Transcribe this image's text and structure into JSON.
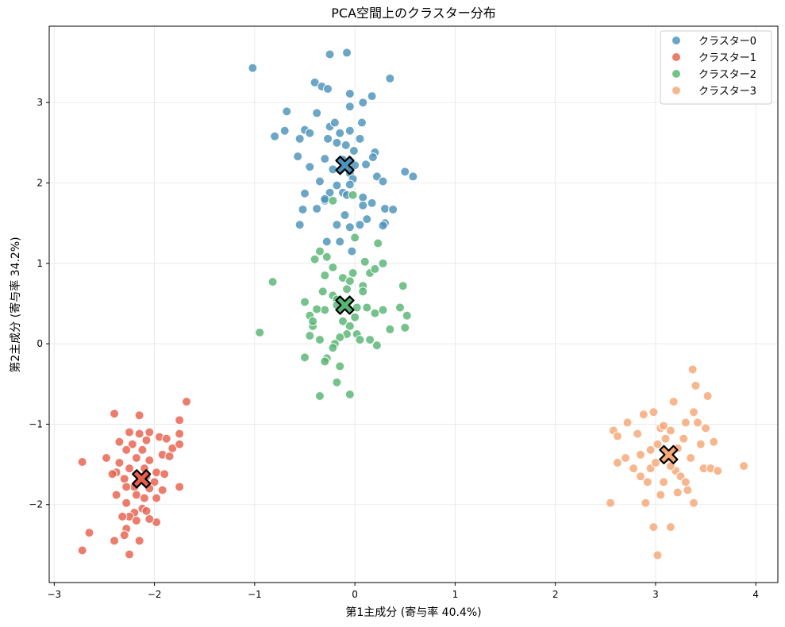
{
  "chart_data": {
    "type": "scatter",
    "title": "PCA空間上のクラスター分布",
    "xlabel": "第1主成分 (寄与率 40.4%)",
    "ylabel": "第2主成分 (寄与率 34.2%)",
    "xlim": [
      -3.05,
      4.22
    ],
    "ylim": [
      -2.97,
      3.95
    ],
    "xticks": [
      -3,
      -2,
      -1,
      0,
      1,
      2,
      3,
      4
    ],
    "xtick_labels": [
      "−3",
      "−2",
      "−1",
      "0",
      "1",
      "2",
      "3",
      "4"
    ],
    "yticks": [
      -2,
      -1,
      0,
      1,
      2,
      3
    ],
    "ytick_labels": [
      "−2",
      "−1",
      "0",
      "1",
      "2",
      "3"
    ],
    "grid": true,
    "legend_position": "top-right",
    "series": [
      {
        "name": "クラスター0",
        "color": "#4c92b9",
        "centroid": [
          -0.1,
          2.22
        ],
        "points": [
          [
            -1.02,
            3.43
          ],
          [
            -0.25,
            3.6
          ],
          [
            -0.08,
            3.62
          ],
          [
            0.35,
            3.3
          ],
          [
            -0.4,
            3.25
          ],
          [
            -0.33,
            3.2
          ],
          [
            -0.27,
            3.17
          ],
          [
            -0.05,
            3.11
          ],
          [
            0.17,
            3.08
          ],
          [
            0.08,
            3.0
          ],
          [
            -0.05,
            2.95
          ],
          [
            -0.68,
            2.89
          ],
          [
            -0.38,
            2.87
          ],
          [
            -0.5,
            2.66
          ],
          [
            -0.7,
            2.65
          ],
          [
            -0.25,
            2.7
          ],
          [
            -0.2,
            2.75
          ],
          [
            -0.15,
            2.62
          ],
          [
            0.07,
            2.75
          ],
          [
            0.05,
            2.55
          ],
          [
            -0.05,
            2.65
          ],
          [
            -0.27,
            2.55
          ],
          [
            -0.8,
            2.58
          ],
          [
            -0.55,
            2.55
          ],
          [
            -0.45,
            2.62
          ],
          [
            -0.18,
            2.5
          ],
          [
            -0.09,
            2.47
          ],
          [
            -0.01,
            2.4
          ],
          [
            0.2,
            2.38
          ],
          [
            0.18,
            2.32
          ],
          [
            -0.57,
            2.33
          ],
          [
            -0.45,
            2.2
          ],
          [
            -0.3,
            2.3
          ],
          [
            -0.12,
            2.29
          ],
          [
            0.0,
            2.22
          ],
          [
            -0.22,
            2.17
          ],
          [
            0.11,
            2.23
          ],
          [
            0.5,
            2.14
          ],
          [
            0.58,
            2.08
          ],
          [
            -0.05,
            2.12
          ],
          [
            -0.02,
            2.05
          ],
          [
            0.22,
            2.08
          ],
          [
            0.28,
            2.02
          ],
          [
            -0.35,
            2.02
          ],
          [
            -0.18,
            1.97
          ],
          [
            -0.05,
            1.98
          ],
          [
            -0.12,
            1.88
          ],
          [
            -0.25,
            1.88
          ],
          [
            -0.5,
            1.87
          ],
          [
            -0.08,
            1.85
          ],
          [
            0.08,
            1.82
          ],
          [
            0.17,
            1.75
          ],
          [
            -0.3,
            1.78
          ],
          [
            0.3,
            1.68
          ],
          [
            0.38,
            1.67
          ],
          [
            -0.38,
            1.68
          ],
          [
            -0.52,
            1.67
          ],
          [
            -0.1,
            1.6
          ],
          [
            0.12,
            1.55
          ],
          [
            0.3,
            1.5
          ],
          [
            0.28,
            1.47
          ],
          [
            -0.55,
            1.48
          ],
          [
            -0.18,
            1.48
          ],
          [
            0.05,
            1.48
          ],
          [
            -0.05,
            1.45
          ],
          [
            -0.28,
            1.27
          ],
          [
            -0.15,
            1.27
          ],
          [
            -0.03,
            1.15
          ],
          [
            -0.3,
            1.8
          ],
          [
            0.08,
            1.72
          ]
        ]
      },
      {
        "name": "クラスター1",
        "color": "#e8604c",
        "centroid": [
          -2.13,
          -1.68
        ],
        "points": [
          [
            -2.72,
            -1.47
          ],
          [
            -2.48,
            -1.42
          ],
          [
            -2.4,
            -0.87
          ],
          [
            -2.15,
            -0.89
          ],
          [
            -1.68,
            -0.72
          ],
          [
            -1.75,
            -0.95
          ],
          [
            -2.05,
            -1.1
          ],
          [
            -2.25,
            -1.1
          ],
          [
            -2.15,
            -1.12
          ],
          [
            -1.95,
            -1.16
          ],
          [
            -1.88,
            -1.18
          ],
          [
            -1.75,
            -1.12
          ],
          [
            -2.35,
            -1.22
          ],
          [
            -2.22,
            -1.25
          ],
          [
            -2.08,
            -1.2
          ],
          [
            -1.82,
            -1.3
          ],
          [
            -1.75,
            -1.25
          ],
          [
            -2.28,
            -1.32
          ],
          [
            -2.12,
            -1.32
          ],
          [
            -1.92,
            -1.38
          ],
          [
            -1.85,
            -1.4
          ],
          [
            -2.35,
            -1.48
          ],
          [
            -2.18,
            -1.42
          ],
          [
            -2.05,
            -1.45
          ],
          [
            -2.25,
            -1.55
          ],
          [
            -2.1,
            -1.55
          ],
          [
            -1.98,
            -1.6
          ],
          [
            -2.38,
            -1.6
          ],
          [
            -2.3,
            -1.68
          ],
          [
            -2.0,
            -1.72
          ],
          [
            -2.2,
            -1.78
          ],
          [
            -2.28,
            -1.78
          ],
          [
            -2.05,
            -1.8
          ],
          [
            -1.75,
            -1.78
          ],
          [
            -1.92,
            -1.82
          ],
          [
            -2.38,
            -1.88
          ],
          [
            -2.18,
            -1.88
          ],
          [
            -2.1,
            -1.92
          ],
          [
            -1.98,
            -1.92
          ],
          [
            -2.28,
            -1.98
          ],
          [
            -2.12,
            -2.05
          ],
          [
            -2.2,
            -2.1
          ],
          [
            -2.25,
            -2.15
          ],
          [
            -2.32,
            -2.15
          ],
          [
            -2.08,
            -2.08
          ],
          [
            -1.98,
            -2.22
          ],
          [
            -2.05,
            -2.18
          ],
          [
            -2.18,
            -2.2
          ],
          [
            -2.28,
            -2.3
          ],
          [
            -2.65,
            -2.35
          ],
          [
            -2.3,
            -2.38
          ],
          [
            -2.4,
            -2.45
          ],
          [
            -2.15,
            -2.45
          ],
          [
            -2.72,
            -2.57
          ],
          [
            -2.25,
            -2.62
          ],
          [
            -2.08,
            -1.65
          ],
          [
            -1.9,
            -1.62
          ],
          [
            -2.42,
            -1.62
          ]
        ]
      },
      {
        "name": "クラスター2",
        "color": "#58b574",
        "centroid": [
          -0.1,
          0.48
        ],
        "points": [
          [
            -0.82,
            0.77
          ],
          [
            -0.95,
            0.14
          ],
          [
            -0.5,
            0.52
          ],
          [
            -0.5,
            -0.17
          ],
          [
            -0.35,
            -0.65
          ],
          [
            -0.05,
            -0.63
          ],
          [
            -0.18,
            -0.48
          ],
          [
            -0.15,
            -0.28
          ],
          [
            -0.28,
            -0.18
          ],
          [
            -0.3,
            -0.22
          ],
          [
            -0.45,
            0.1
          ],
          [
            -0.35,
            0.05
          ],
          [
            -0.42,
            0.22
          ],
          [
            -0.45,
            0.35
          ],
          [
            -0.42,
            0.28
          ],
          [
            -0.3,
            0.42
          ],
          [
            -0.38,
            0.43
          ],
          [
            -0.32,
            0.65
          ],
          [
            -0.3,
            0.85
          ],
          [
            -0.28,
            1.08
          ],
          [
            -0.35,
            1.15
          ],
          [
            -0.4,
            1.05
          ],
          [
            -0.22,
            0.95
          ],
          [
            -0.12,
            0.82
          ],
          [
            -0.05,
            0.78
          ],
          [
            -0.02,
            0.88
          ],
          [
            0.08,
            0.72
          ],
          [
            0.15,
            0.88
          ],
          [
            0.2,
            0.93
          ],
          [
            0.28,
            1.0
          ],
          [
            0.23,
            1.25
          ],
          [
            0.1,
            1.02
          ],
          [
            0.0,
            1.32
          ],
          [
            -0.02,
            1.85
          ],
          [
            -0.22,
            1.78
          ],
          [
            -0.22,
            0.6
          ],
          [
            -0.18,
            0.55
          ],
          [
            -0.12,
            0.28
          ],
          [
            -0.05,
            0.22
          ],
          [
            0.0,
            0.33
          ],
          [
            0.02,
            0.12
          ],
          [
            0.05,
            0.05
          ],
          [
            -0.08,
            0.12
          ],
          [
            -0.15,
            0.08
          ],
          [
            -0.2,
            0.0
          ],
          [
            -0.22,
            -0.05
          ],
          [
            0.12,
            0.45
          ],
          [
            0.2,
            0.38
          ],
          [
            0.28,
            0.42
          ],
          [
            0.35,
            0.18
          ],
          [
            0.45,
            0.45
          ],
          [
            0.5,
            0.2
          ],
          [
            0.52,
            0.35
          ],
          [
            0.48,
            0.72
          ],
          [
            0.22,
            -0.02
          ],
          [
            0.15,
            0.05
          ],
          [
            0.08,
            0.65
          ],
          [
            -0.08,
            0.68
          ],
          [
            -0.18,
            0.48
          ],
          [
            0.02,
            0.45
          ]
        ]
      },
      {
        "name": "クラスター3",
        "color": "#f5a775",
        "centroid": [
          3.13,
          -1.38
        ],
        "points": [
          [
            2.55,
            -1.98
          ],
          [
            2.58,
            -1.08
          ],
          [
            2.62,
            -1.15
          ],
          [
            2.62,
            -1.48
          ],
          [
            2.7,
            -1.42
          ],
          [
            2.72,
            -0.98
          ],
          [
            2.78,
            -1.55
          ],
          [
            2.82,
            -1.12
          ],
          [
            2.85,
            -1.65
          ],
          [
            2.88,
            -0.88
          ],
          [
            2.9,
            -1.98
          ],
          [
            2.92,
            -1.72
          ],
          [
            2.95,
            -1.55
          ],
          [
            2.98,
            -0.85
          ],
          [
            3.0,
            -1.48
          ],
          [
            3.02,
            -1.25
          ],
          [
            3.05,
            -1.88
          ],
          [
            3.05,
            -1.05
          ],
          [
            3.08,
            -1.02
          ],
          [
            3.1,
            -1.18
          ],
          [
            3.12,
            -1.42
          ],
          [
            3.15,
            -1.08
          ],
          [
            3.18,
            -0.72
          ],
          [
            3.2,
            -1.58
          ],
          [
            3.22,
            -1.3
          ],
          [
            3.25,
            -1.65
          ],
          [
            3.28,
            -1.18
          ],
          [
            3.3,
            -0.98
          ],
          [
            3.32,
            -1.82
          ],
          [
            3.35,
            -1.42
          ],
          [
            3.37,
            -0.32
          ],
          [
            3.38,
            -0.85
          ],
          [
            3.4,
            -0.52
          ],
          [
            3.42,
            -0.98
          ],
          [
            3.45,
            -1.25
          ],
          [
            3.48,
            -1.55
          ],
          [
            3.5,
            -1.05
          ],
          [
            3.52,
            -0.65
          ],
          [
            3.55,
            -1.55
          ],
          [
            3.58,
            -1.22
          ],
          [
            3.62,
            -1.58
          ],
          [
            3.88,
            -1.52
          ],
          [
            2.98,
            -2.28
          ],
          [
            3.15,
            -2.28
          ],
          [
            3.02,
            -2.63
          ],
          [
            3.38,
            -1.98
          ],
          [
            3.22,
            -1.85
          ],
          [
            3.3,
            -1.72
          ],
          [
            3.15,
            -1.52
          ],
          [
            2.95,
            -1.32
          ],
          [
            3.08,
            -1.72
          ],
          [
            2.85,
            -1.38
          ]
        ]
      }
    ]
  }
}
